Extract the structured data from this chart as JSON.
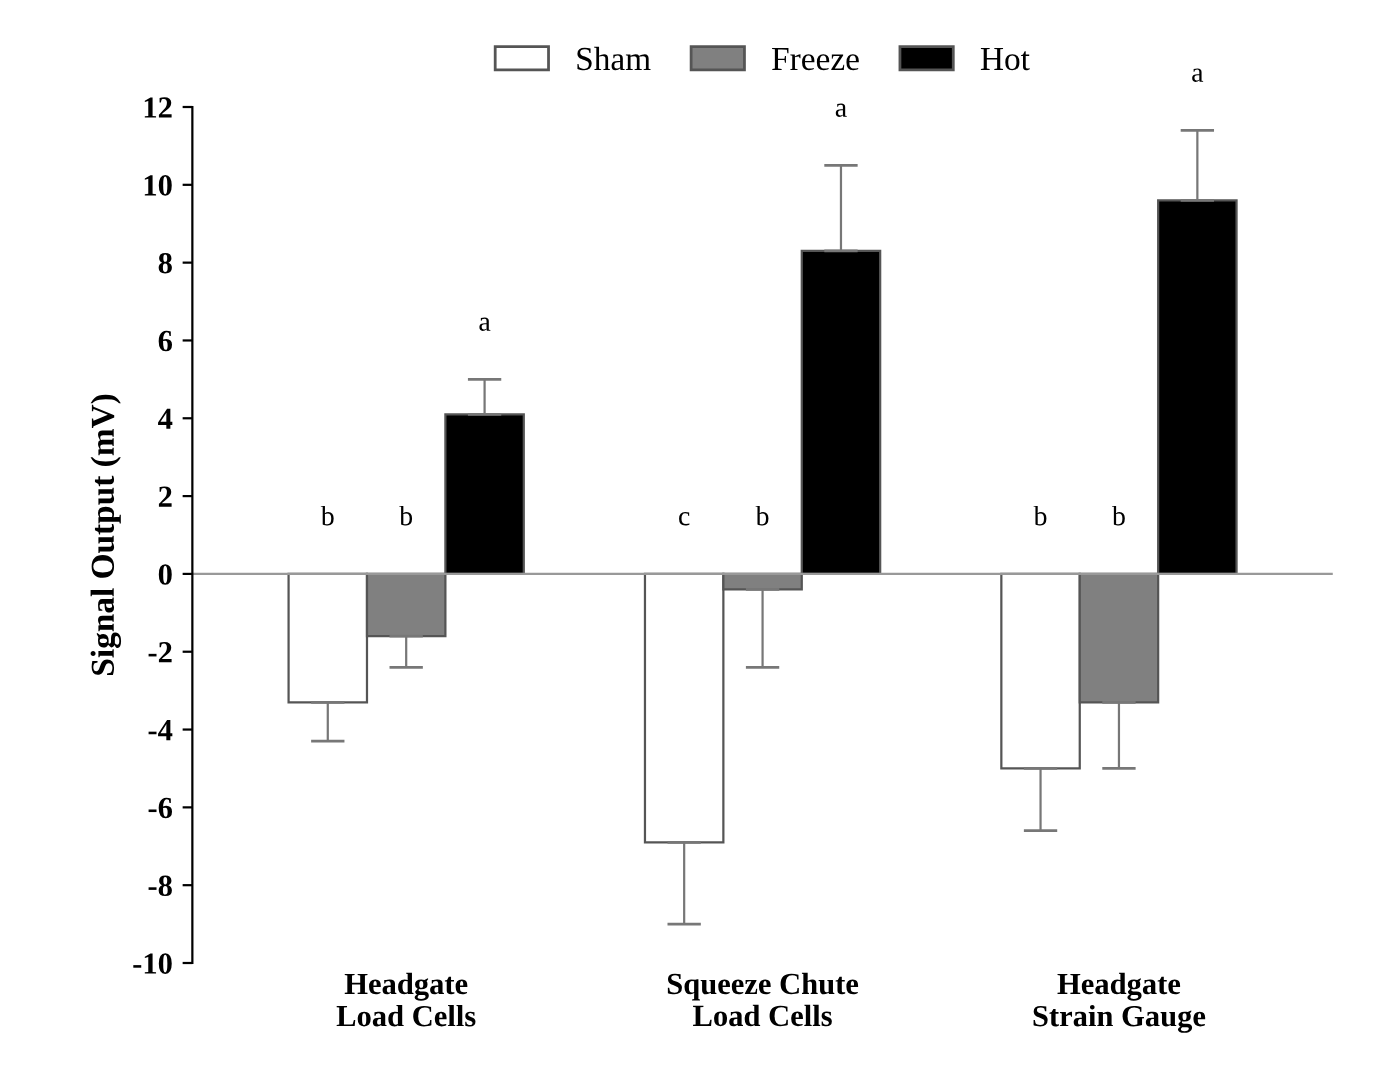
{
  "chart_data": {
    "type": "bar",
    "ylabel": "Signal Output (mV)",
    "categories": [
      "Headgate\nLoad Cells",
      "Squeeze Chute\nLoad Cells",
      "Headgate\nStrain Gauge"
    ],
    "series": [
      {
        "name": "Sham",
        "color": "#ffffff",
        "values": [
          -3.3,
          -6.9,
          -5.0
        ],
        "errors": [
          [
            -4.3,
            -3.3
          ],
          [
            -9.0,
            -6.9
          ],
          [
            -6.6,
            -5.0
          ]
        ]
      },
      {
        "name": "Freeze",
        "color": "#808080",
        "values": [
          -1.6,
          -0.4,
          -3.3
        ],
        "errors": [
          [
            -2.4,
            -1.6
          ],
          [
            -2.4,
            -0.4
          ],
          [
            -5.0,
            -3.3
          ]
        ]
      },
      {
        "name": "Hot",
        "color": "#000000",
        "values": [
          4.1,
          8.3,
          9.6
        ],
        "errors": [
          [
            4.1,
            5.0
          ],
          [
            8.3,
            10.5
          ],
          [
            9.6,
            11.4
          ]
        ]
      }
    ],
    "ylim": [
      -10,
      12
    ],
    "yticks": [
      -10,
      -8,
      -6,
      -4,
      -2,
      0,
      2,
      4,
      6,
      8,
      10,
      12
    ],
    "legend": "top",
    "grid": false,
    "ref_lines": [
      {
        "axis": "y",
        "value": 0,
        "color": "#999999"
      }
    ],
    "annotations": [
      "b",
      "b",
      "a",
      "c",
      "b",
      "a",
      "b",
      "b",
      "a"
    ]
  }
}
